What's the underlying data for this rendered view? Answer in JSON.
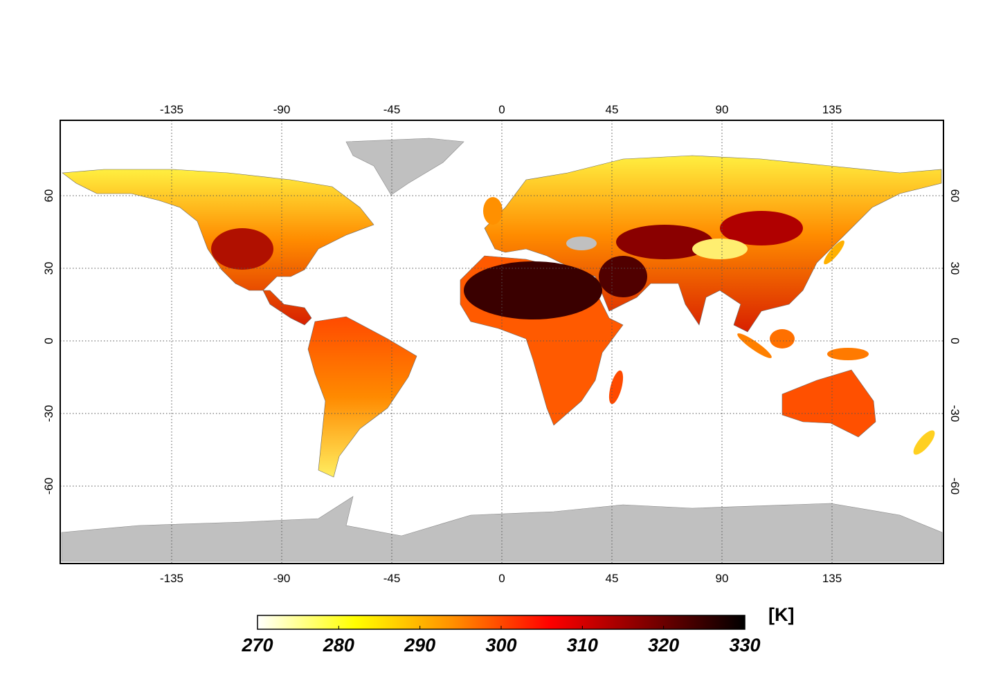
{
  "map": {
    "xlim": [
      -180,
      180
    ],
    "ylim": [
      -90,
      90
    ],
    "xticks": [
      -135,
      -90,
      -45,
      0,
      45,
      90,
      135
    ],
    "yticks": [
      -60,
      -30,
      0,
      30,
      60
    ],
    "grid": true,
    "colorbar": {
      "lim": [
        270,
        330
      ],
      "ticks": [
        270,
        280,
        290,
        300,
        310,
        320,
        330
      ],
      "unit": "[K]",
      "colors": [
        "#ffffff",
        "#ffff00",
        "#ff9000",
        "#ff0000",
        "#800000",
        "#000000"
      ]
    }
  }
}
